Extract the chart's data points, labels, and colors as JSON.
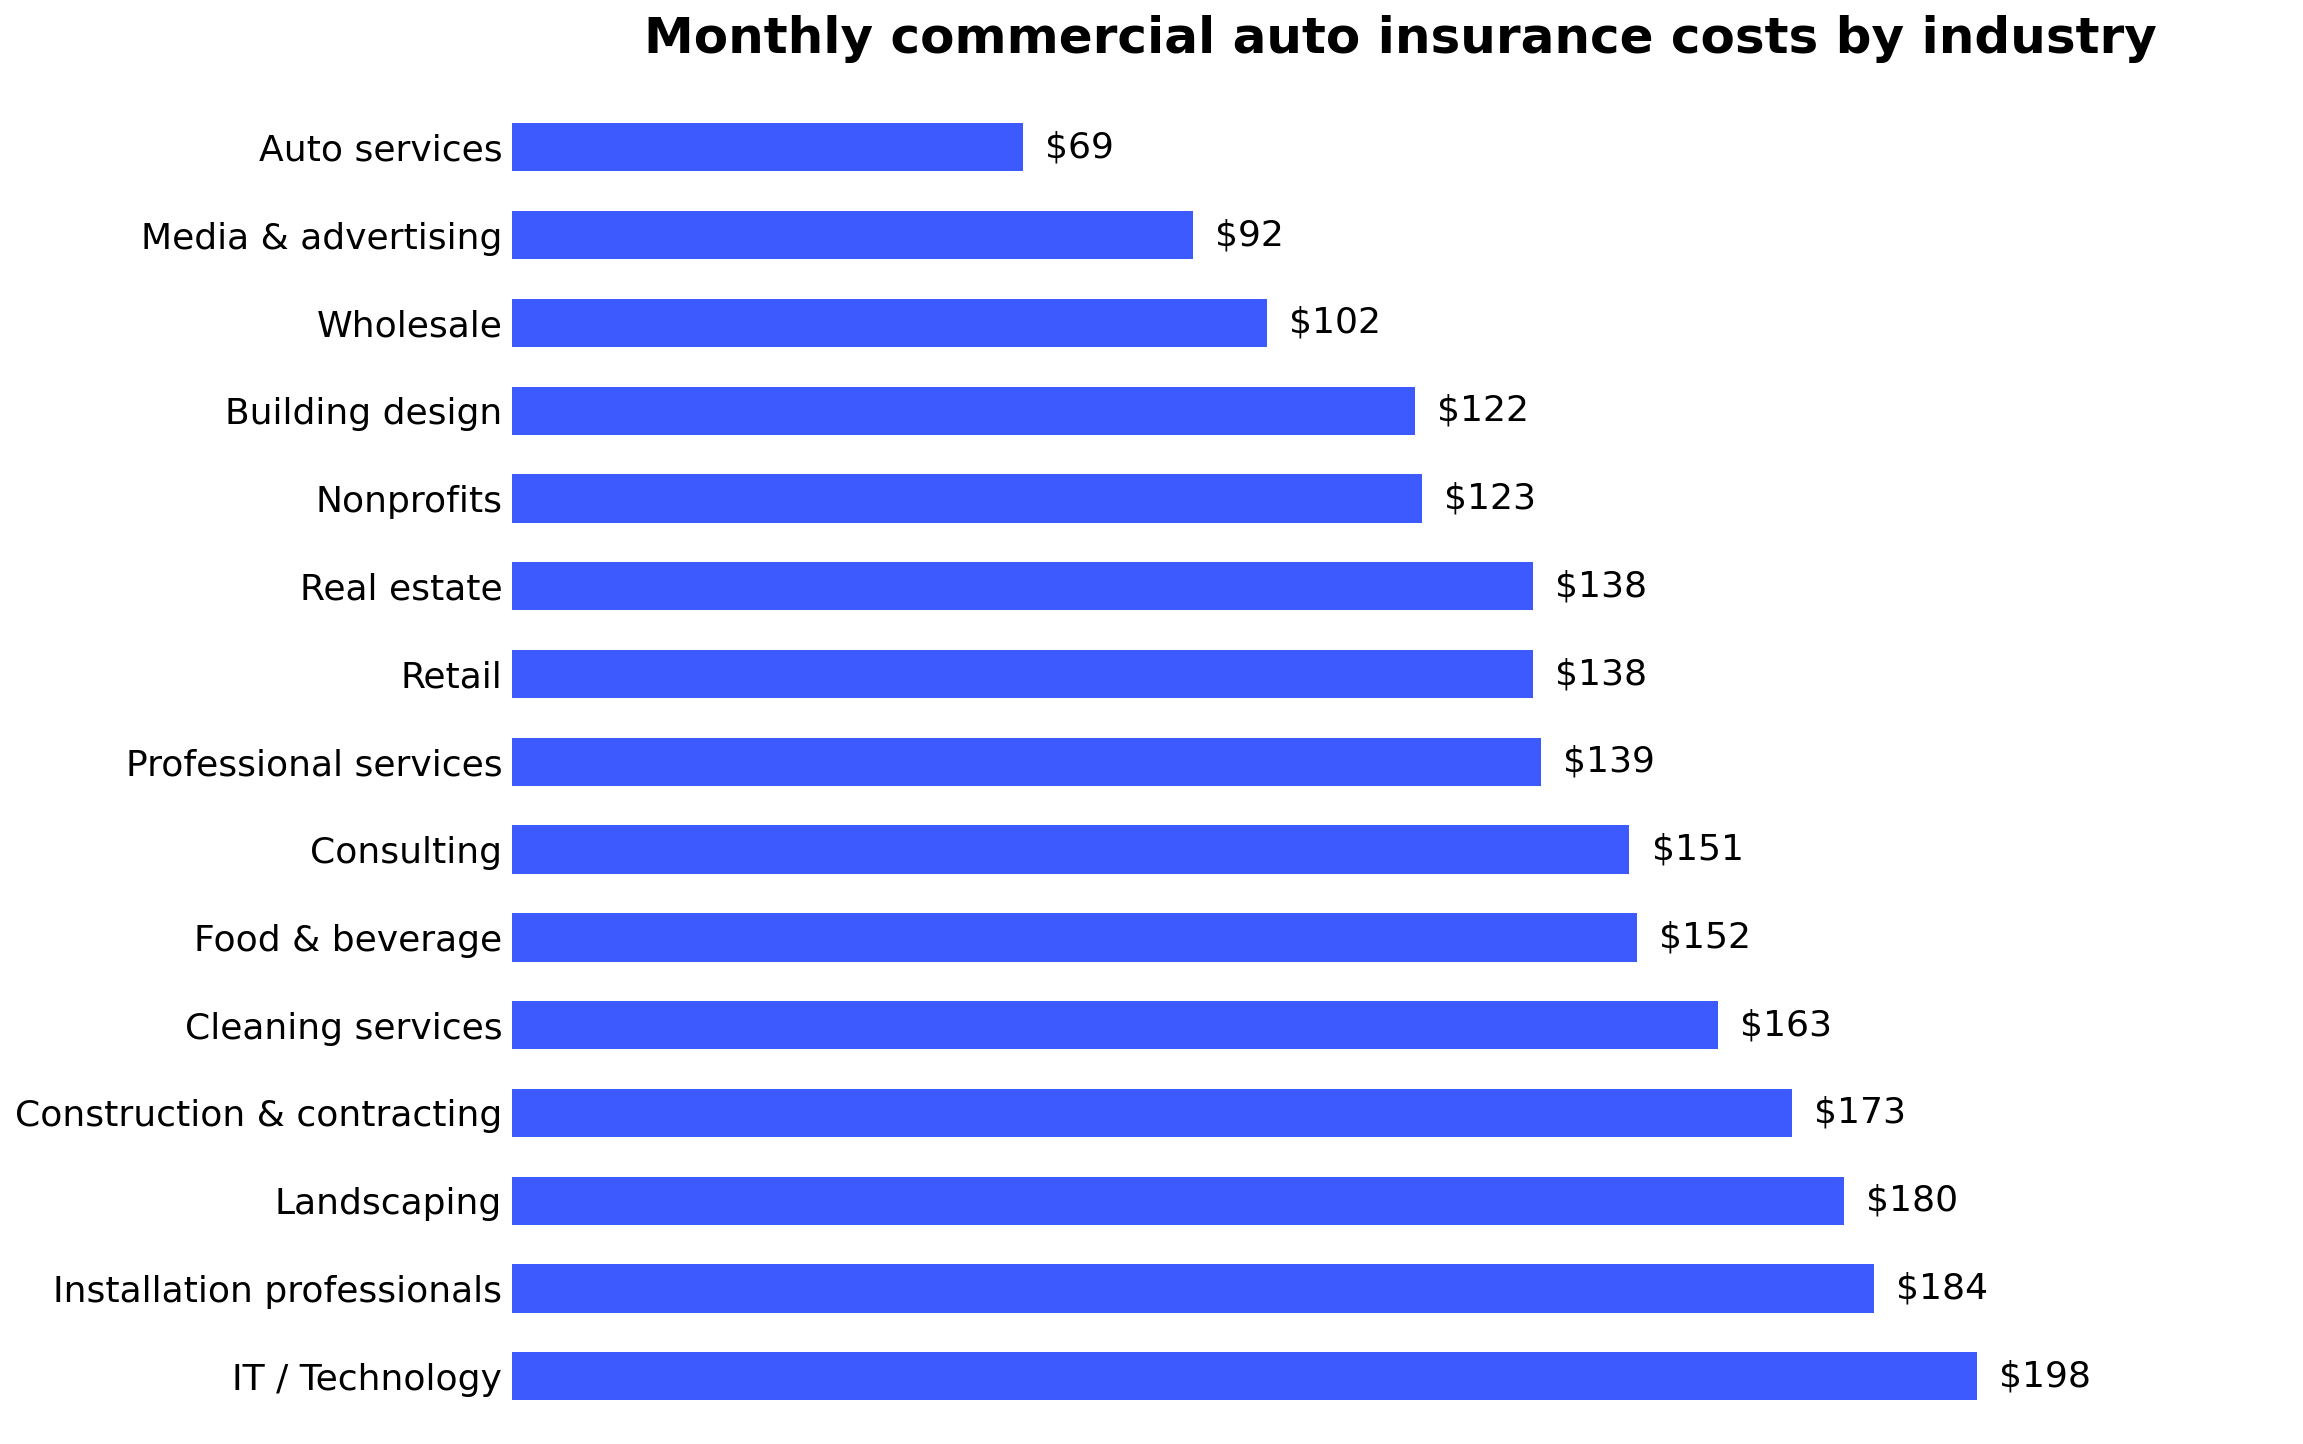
{
  "title": "Monthly commercial auto insurance costs by industry",
  "categories": [
    "Auto services",
    "Media & advertising",
    "Wholesale",
    "Building design",
    "Nonprofits",
    "Real estate",
    "Retail",
    "Professional services",
    "Consulting",
    "Food & beverage",
    "Cleaning services",
    "Construction & contracting",
    "Landscaping",
    "Installation professionals",
    "IT / Technology"
  ],
  "values": [
    69,
    92,
    102,
    122,
    123,
    138,
    138,
    139,
    151,
    152,
    163,
    173,
    180,
    184,
    198
  ],
  "bar_color": "#3D5AFE",
  "label_color": "#000000",
  "background_color": "#FFFFFF",
  "title_fontsize": 36,
  "label_fontsize": 26,
  "value_fontsize": 26,
  "xlim": [
    0,
    240
  ],
  "bar_height": 0.55
}
